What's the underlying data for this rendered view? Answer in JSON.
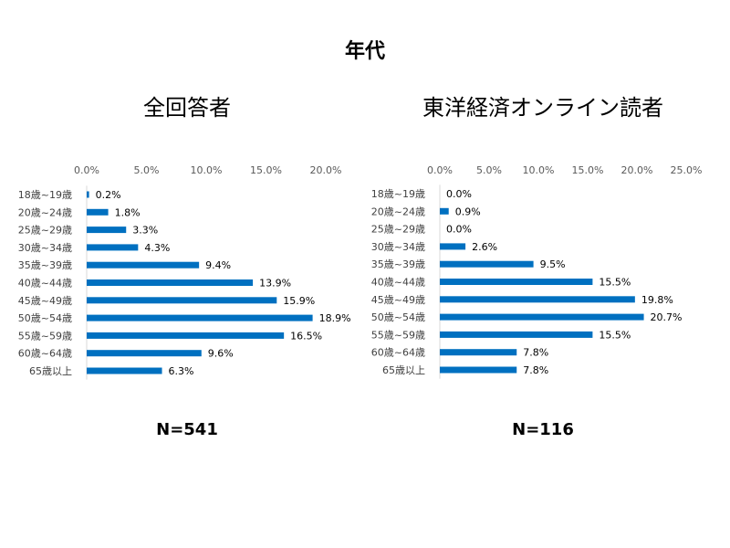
{
  "title": "年代",
  "chart_data": [
    {
      "type": "bar",
      "orientation": "horizontal",
      "title": "全回答者",
      "note": "N=541",
      "categories": [
        "18歳~19歳",
        "20歳~24歳",
        "25歳~29歳",
        "30歳~34歳",
        "35歳~39歳",
        "40歳~44歳",
        "45歳~49歳",
        "50歳~54歳",
        "55歳~59歳",
        "60歳~64歳",
        "65歳以上"
      ],
      "values": [
        0.2,
        1.8,
        3.3,
        4.3,
        9.4,
        13.9,
        15.9,
        18.9,
        16.5,
        9.6,
        6.3
      ],
      "value_labels": [
        "0.2%",
        "1.8%",
        "3.3%",
        "4.3%",
        "9.4%",
        "13.9%",
        "15.9%",
        "18.9%",
        "16.5%",
        "9.6%",
        "6.3%"
      ],
      "xlim": [
        0,
        20
      ],
      "xticks": [
        "0.0%",
        "5.0%",
        "10.0%",
        "15.0%",
        "20.0%"
      ],
      "axis_position": "top",
      "grid": false,
      "bar_color": "#0070C0"
    },
    {
      "type": "bar",
      "orientation": "horizontal",
      "title": "東洋経済オンライン読者",
      "note": "N=116",
      "categories": [
        "18歳~19歳",
        "20歳~24歳",
        "25歳~29歳",
        "30歳~34歳",
        "35歳~39歳",
        "40歳~44歳",
        "45歳~49歳",
        "50歳~54歳",
        "55歳~59歳",
        "60歳~64歳",
        "65歳以上"
      ],
      "values": [
        0.0,
        0.9,
        0.0,
        2.6,
        9.5,
        15.5,
        19.8,
        20.7,
        15.5,
        7.8,
        7.8
      ],
      "value_labels": [
        "0.0%",
        "0.9%",
        "0.0%",
        "2.6%",
        "9.5%",
        "15.5%",
        "19.8%",
        "20.7%",
        "15.5%",
        "7.8%",
        "7.8%"
      ],
      "xlim": [
        0,
        25
      ],
      "xticks": [
        "0.0%",
        "5.0%",
        "10.0%",
        "15.0%",
        "20.0%",
        "25.0%"
      ],
      "axis_position": "top",
      "grid": false,
      "bar_color": "#0070C0"
    }
  ]
}
